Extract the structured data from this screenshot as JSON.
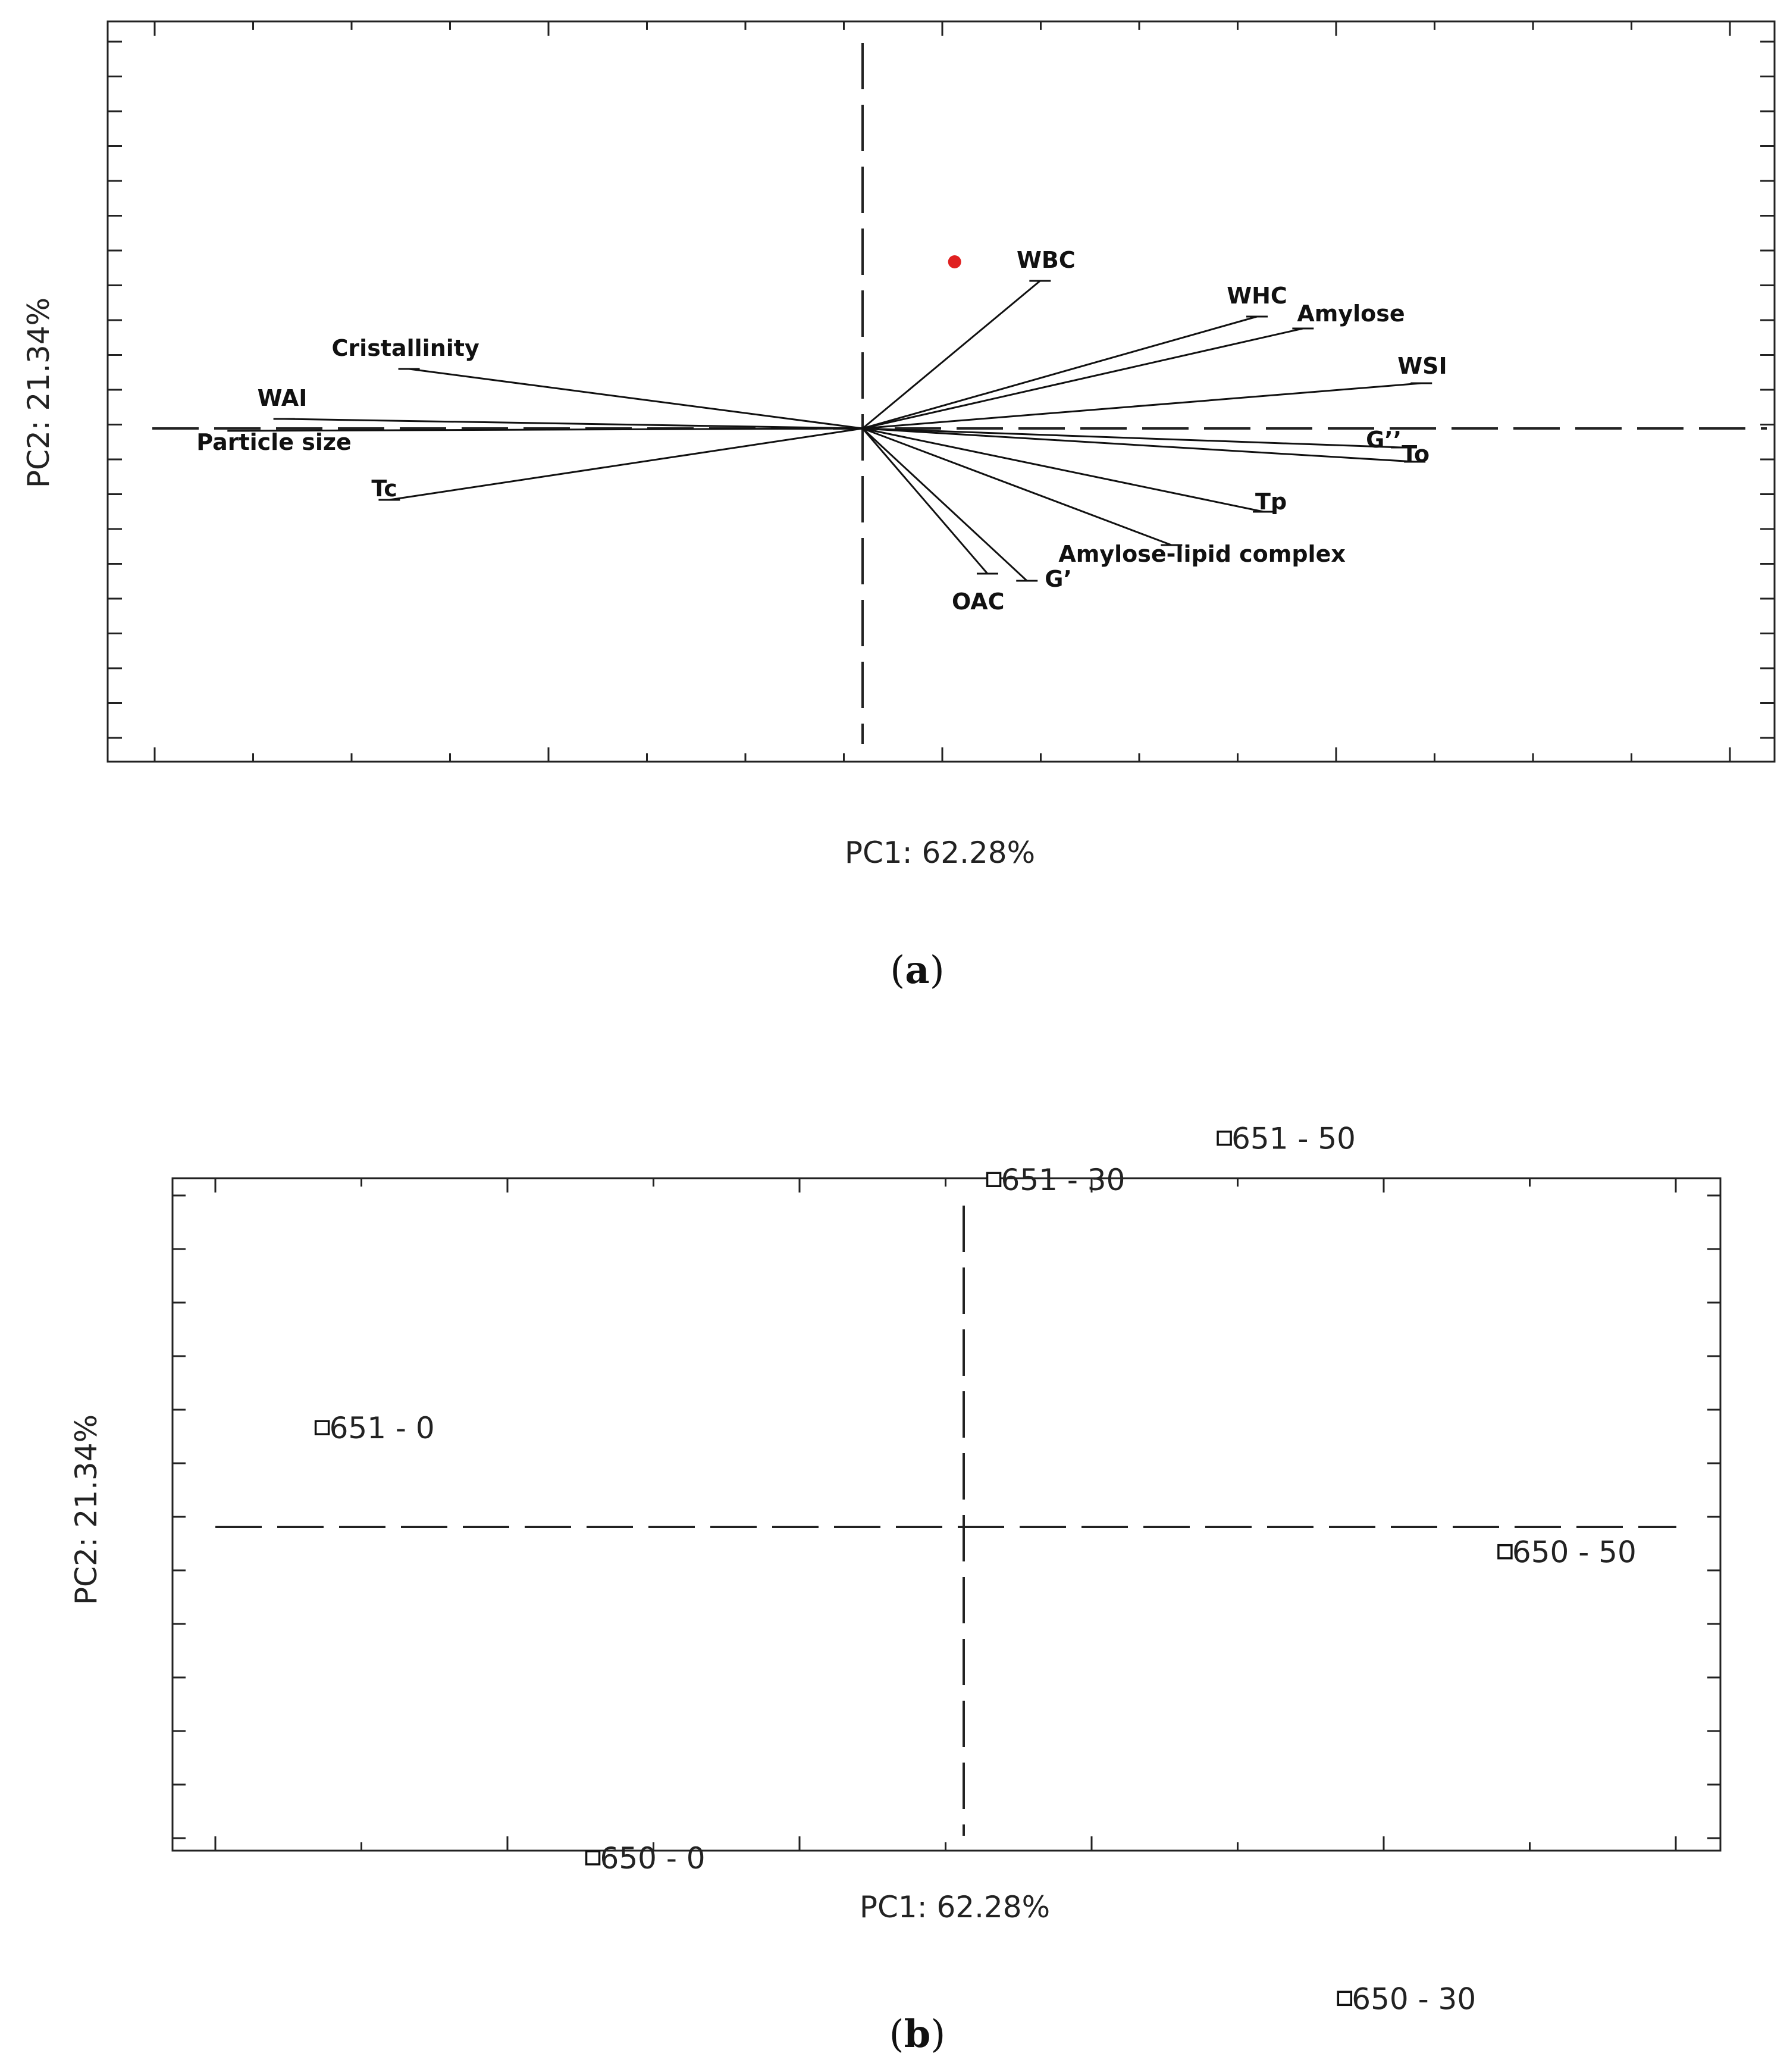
{
  "chart_data": [
    {
      "type": "scatter",
      "subtype": "biplot-loadings",
      "panel_label": "a",
      "xlabel": "PC1: 62.28%",
      "ylabel": "PC2: 21.34%",
      "xlim": [
        -1.0,
        1.0
      ],
      "ylim": [
        -0.7,
        0.8
      ],
      "grid": false,
      "vectors": [
        {
          "name": "WBC",
          "x": 0.27,
          "y": 0.62
        },
        {
          "name": "WHC",
          "x": 0.6,
          "y": 0.47
        },
        {
          "name": "Amylose",
          "x": 0.67,
          "y": 0.42
        },
        {
          "name": "WSI",
          "x": 0.85,
          "y": 0.19
        },
        {
          "name": "G’’",
          "x": 0.82,
          "y": -0.08
        },
        {
          "name": "To",
          "x": 0.84,
          "y": -0.14
        },
        {
          "name": "Tp",
          "x": 0.61,
          "y": -0.35
        },
        {
          "name": "Amylose-lipid complex",
          "x": 0.47,
          "y": -0.49
        },
        {
          "name": "OAC",
          "x": 0.19,
          "y": -0.61
        },
        {
          "name": "G’",
          "x": 0.25,
          "y": -0.64
        },
        {
          "name": "Cristallinity",
          "x": -0.69,
          "y": 0.25
        },
        {
          "name": "WAI",
          "x": -0.88,
          "y": 0.04
        },
        {
          "name": "Particle size",
          "x": -0.95,
          "y": -0.01
        },
        {
          "name": "Tc",
          "x": -0.72,
          "y": -0.3
        }
      ],
      "highlight_point": {
        "x": 0.14,
        "y": 0.7,
        "color": "#e02020"
      }
    },
    {
      "type": "scatter",
      "subtype": "biplot-scores",
      "panel_label": "b",
      "xlabel": "PC1: 62.28%",
      "ylabel": "PC2: 21.34%",
      "xlim": [
        -3.5,
        3.8
      ],
      "ylim": [
        -3.0,
        3.0
      ],
      "grid": false,
      "points": [
        {
          "label": "651 - 0",
          "x": -3.2,
          "y": 0.6
        },
        {
          "label": "651 - 30",
          "x": 0.15,
          "y": 2.1
        },
        {
          "label": "651 - 50",
          "x": 1.3,
          "y": 2.35
        },
        {
          "label": "650 - 50",
          "x": 2.7,
          "y": -0.15
        },
        {
          "label": "650 - 0",
          "x": -1.85,
          "y": -2.0
        },
        {
          "label": "650 - 30",
          "x": 1.9,
          "y": -2.85
        }
      ]
    }
  ]
}
